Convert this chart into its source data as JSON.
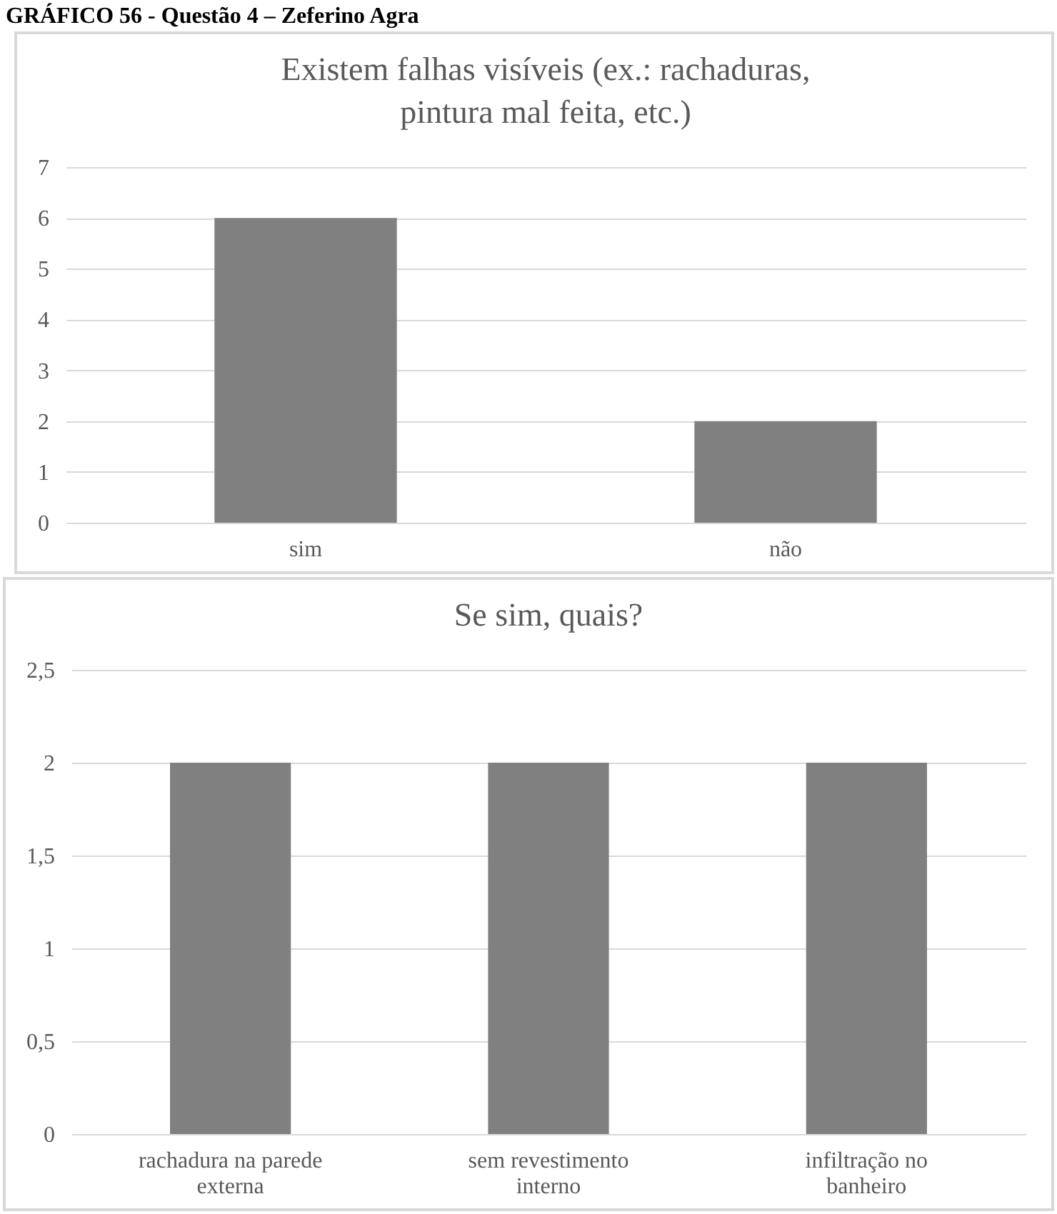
{
  "chart_data": [
    {
      "type": "bar",
      "title": "Existem falhas visíveis (ex.: rachaduras,\npintura mal feita, etc.)",
      "annotations": [
        "GRÁFICO 56 - Questão 4 – Zeferino Agra"
      ],
      "categories": [
        "sim",
        "não"
      ],
      "values": [
        6,
        2
      ],
      "color": "#808080",
      "ylim": [
        0,
        7
      ],
      "yticks": [
        0,
        1,
        2,
        3,
        4,
        5,
        6,
        7
      ],
      "grid": "y"
    },
    {
      "type": "bar",
      "title": "Se sim, quais?",
      "categories": [
        "rachadura na parede externa",
        "sem revestimento interno",
        "infiltração no banheiro"
      ],
      "values": [
        2,
        2,
        2
      ],
      "color": "#808080",
      "ylim": [
        0,
        2.5
      ],
      "yticks": [
        {
          "value": 0,
          "label": "0"
        },
        {
          "value": 0.5,
          "label": "0,5"
        },
        {
          "value": 1,
          "label": "1"
        },
        {
          "value": 1.5,
          "label": "1,5"
        },
        {
          "value": 2,
          "label": "2"
        },
        {
          "value": 2.5,
          "label": "2,5"
        }
      ],
      "grid": "y"
    }
  ]
}
